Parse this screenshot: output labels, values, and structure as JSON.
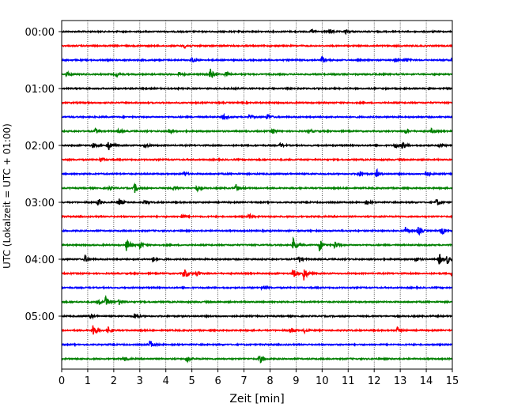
{
  "chart_data": {
    "type": "line",
    "title": "",
    "xlabel": "Zeit  [min]",
    "ylabel": "UTC (Lokalzeit = UTC + 01:00)",
    "xlim": [
      0,
      15
    ],
    "x_ticks": [
      "0",
      "1",
      "2",
      "3",
      "4",
      "5",
      "6",
      "7",
      "8",
      "9",
      "10",
      "11",
      "12",
      "13",
      "14",
      "15"
    ],
    "y_ticks": [
      "00:00",
      "01:00",
      "02:00",
      "03:00",
      "04:00",
      "05:00"
    ],
    "grid": "vertical dotted at each minute",
    "legend": "none",
    "trace_minutes": 15,
    "trace_colors": [
      "#000000",
      "#ff0000",
      "#0000ff",
      "#008000"
    ],
    "traces": [
      {
        "start": "00:00",
        "color": "#000000",
        "events": [
          {
            "t": 9.6,
            "a": 3
          },
          {
            "t": 10.3,
            "a": 3
          },
          {
            "t": 10.9,
            "a": 2.5
          }
        ]
      },
      {
        "start": "00:15",
        "color": "#ff0000",
        "events": [
          {
            "t": 4.7,
            "a": 3
          }
        ]
      },
      {
        "start": "00:30",
        "color": "#0000ff",
        "events": [
          {
            "t": 5.0,
            "a": 3.5
          },
          {
            "t": 10.0,
            "a": 5
          },
          {
            "t": 12.8,
            "a": 3.5
          },
          {
            "t": 13.2,
            "a": 3
          },
          {
            "t": 15.0,
            "a": 4
          }
        ]
      },
      {
        "start": "00:45",
        "color": "#008000",
        "events": [
          {
            "t": 0.2,
            "a": 3
          },
          {
            "t": 2.1,
            "a": 3
          },
          {
            "t": 4.5,
            "a": 3
          },
          {
            "t": 5.7,
            "a": 8
          },
          {
            "t": 6.3,
            "a": 3
          }
        ]
      },
      {
        "start": "01:00",
        "color": "#000000",
        "events": []
      },
      {
        "start": "01:15",
        "color": "#ff0000",
        "events": []
      },
      {
        "start": "01:30",
        "color": "#0000ff",
        "events": [
          {
            "t": 6.2,
            "a": 3.5
          },
          {
            "t": 7.2,
            "a": 3
          },
          {
            "t": 7.9,
            "a": 4.5
          }
        ]
      },
      {
        "start": "01:45",
        "color": "#008000",
        "events": [
          {
            "t": 1.3,
            "a": 3.5
          },
          {
            "t": 2.2,
            "a": 3
          },
          {
            "t": 4.1,
            "a": 3
          },
          {
            "t": 8.1,
            "a": 4
          },
          {
            "t": 9.5,
            "a": 3
          },
          {
            "t": 13.2,
            "a": 3
          },
          {
            "t": 14.2,
            "a": 3
          }
        ]
      },
      {
        "start": "02:00",
        "color": "#000000",
        "events": [
          {
            "t": 1.2,
            "a": 3.5
          },
          {
            "t": 1.8,
            "a": 6
          },
          {
            "t": 3.2,
            "a": 3
          },
          {
            "t": 8.4,
            "a": 3
          },
          {
            "t": 12.8,
            "a": 3.5
          },
          {
            "t": 13.1,
            "a": 6
          },
          {
            "t": 14.5,
            "a": 3
          }
        ]
      },
      {
        "start": "02:15",
        "color": "#ff0000",
        "events": [
          {
            "t": 1.5,
            "a": 3
          }
        ]
      },
      {
        "start": "02:30",
        "color": "#0000ff",
        "events": [
          {
            "t": 4.7,
            "a": 3
          },
          {
            "t": 11.4,
            "a": 6
          },
          {
            "t": 12.1,
            "a": 5
          },
          {
            "t": 14.0,
            "a": 4
          }
        ]
      },
      {
        "start": "02:45",
        "color": "#008000",
        "events": [
          {
            "t": 1.8,
            "a": 3
          },
          {
            "t": 2.8,
            "a": 6
          },
          {
            "t": 4.3,
            "a": 4
          },
          {
            "t": 5.2,
            "a": 3.5
          },
          {
            "t": 6.7,
            "a": 5
          }
        ]
      },
      {
        "start": "03:00",
        "color": "#000000",
        "events": [
          {
            "t": 1.4,
            "a": 5
          },
          {
            "t": 2.2,
            "a": 6
          },
          {
            "t": 3.2,
            "a": 3
          },
          {
            "t": 11.7,
            "a": 3
          },
          {
            "t": 14.4,
            "a": 5
          }
        ]
      },
      {
        "start": "03:15",
        "color": "#ff0000",
        "events": [
          {
            "t": 4.6,
            "a": 3
          },
          {
            "t": 7.2,
            "a": 3
          }
        ]
      },
      {
        "start": "03:30",
        "color": "#0000ff",
        "events": [
          {
            "t": 13.2,
            "a": 5
          },
          {
            "t": 13.7,
            "a": 6
          },
          {
            "t": 14.6,
            "a": 5
          }
        ]
      },
      {
        "start": "03:45",
        "color": "#008000",
        "events": [
          {
            "t": 2.5,
            "a": 10
          },
          {
            "t": 3.0,
            "a": 5
          },
          {
            "t": 8.9,
            "a": 9
          },
          {
            "t": 9.9,
            "a": 9
          },
          {
            "t": 10.5,
            "a": 6
          }
        ]
      },
      {
        "start": "04:00",
        "color": "#000000",
        "events": [
          {
            "t": 0.9,
            "a": 5
          },
          {
            "t": 3.5,
            "a": 3
          },
          {
            "t": 9.1,
            "a": 5
          },
          {
            "t": 13.6,
            "a": 3
          },
          {
            "t": 14.5,
            "a": 7
          },
          {
            "t": 14.8,
            "a": 6
          }
        ]
      },
      {
        "start": "04:15",
        "color": "#ff0000",
        "events": [
          {
            "t": 4.7,
            "a": 9
          },
          {
            "t": 5.2,
            "a": 3
          },
          {
            "t": 8.9,
            "a": 6
          },
          {
            "t": 9.3,
            "a": 9
          },
          {
            "t": 15.0,
            "a": 4
          }
        ]
      },
      {
        "start": "04:30",
        "color": "#0000ff",
        "events": [
          {
            "t": 7.7,
            "a": 3
          }
        ]
      },
      {
        "start": "04:45",
        "color": "#008000",
        "events": [
          {
            "t": 1.4,
            "a": 4
          },
          {
            "t": 1.7,
            "a": 8
          },
          {
            "t": 2.2,
            "a": 5
          }
        ]
      },
      {
        "start": "05:00",
        "color": "#000000",
        "events": [
          {
            "t": 1.1,
            "a": 3
          },
          {
            "t": 2.8,
            "a": 4
          }
        ]
      },
      {
        "start": "05:15",
        "color": "#ff0000",
        "events": [
          {
            "t": 1.2,
            "a": 8
          },
          {
            "t": 1.8,
            "a": 5
          },
          {
            "t": 8.8,
            "a": 4
          },
          {
            "t": 9.3,
            "a": 3
          },
          {
            "t": 12.9,
            "a": 4
          }
        ]
      },
      {
        "start": "05:30",
        "color": "#0000ff",
        "events": [
          {
            "t": 3.4,
            "a": 6
          }
        ]
      },
      {
        "start": "05:45",
        "color": "#008000",
        "events": [
          {
            "t": 2.4,
            "a": 3
          },
          {
            "t": 4.8,
            "a": 5
          },
          {
            "t": 7.6,
            "a": 6
          }
        ]
      }
    ]
  }
}
